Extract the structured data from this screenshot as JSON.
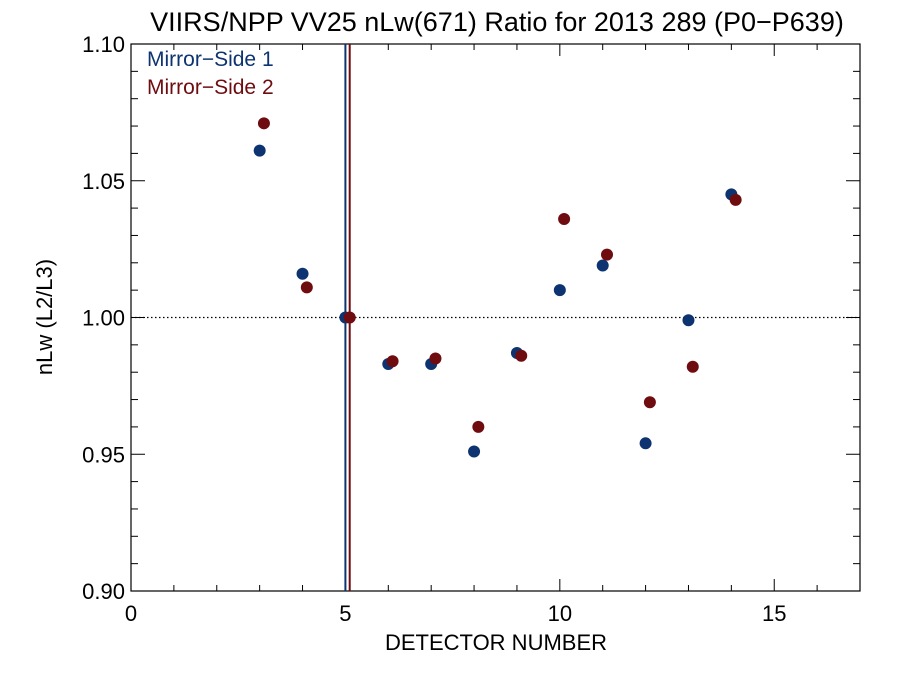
{
  "chart_data": {
    "type": "scatter",
    "title": "VIIRS/NPP VV25 nLw(671) Ratio for 2013 289 (P0−P639)",
    "xlabel": "DETECTOR NUMBER",
    "ylabel": "nLw (L2/L3)",
    "xlim": [
      0,
      17
    ],
    "ylim": [
      0.9,
      1.1
    ],
    "xticks": [
      0,
      5,
      10,
      15
    ],
    "xtick_labels": [
      "0",
      "5",
      "10",
      "15"
    ],
    "yticks": [
      0.9,
      0.95,
      1.0,
      1.05,
      1.1
    ],
    "ytick_labels": [
      "0.90",
      "0.95",
      "1.00",
      "1.05",
      "1.10"
    ],
    "reference_line": {
      "y": 1.0,
      "style": "dotted"
    },
    "vertical_lines": [
      {
        "x": 5.0,
        "series": "Mirror−Side 1"
      },
      {
        "x": 5.1,
        "series": "Mirror−Side 2"
      }
    ],
    "legend_position": "top-left",
    "series": [
      {
        "name": "Mirror−Side 1",
        "color": "#0d3470",
        "x": [
          3,
          4,
          5,
          6,
          7,
          8,
          9,
          10,
          11,
          12,
          13,
          14
        ],
        "y": [
          1.061,
          1.016,
          1.0,
          0.983,
          0.983,
          0.951,
          0.987,
          1.01,
          1.019,
          0.954,
          0.999,
          1.045
        ]
      },
      {
        "name": "Mirror−Side 2",
        "color": "#6e0c10",
        "x": [
          3.1,
          4.1,
          5.1,
          6.1,
          7.1,
          8.1,
          9.1,
          10.1,
          11.1,
          12.1,
          13.1,
          14.1
        ],
        "y": [
          1.071,
          1.011,
          1.0,
          0.984,
          0.985,
          0.96,
          0.986,
          1.036,
          1.023,
          0.969,
          0.982,
          1.043
        ]
      }
    ]
  }
}
